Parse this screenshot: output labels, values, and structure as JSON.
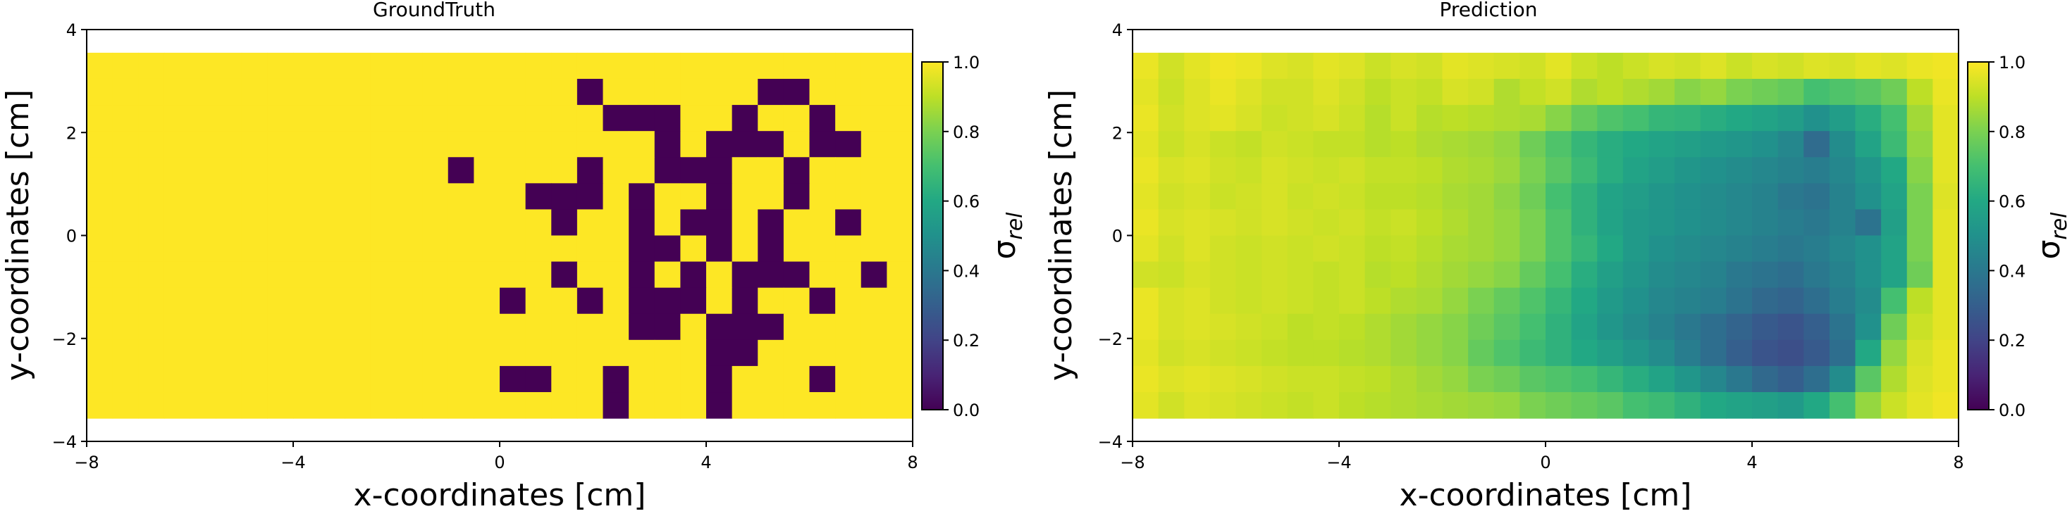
{
  "chart_data": [
    {
      "type": "heatmap",
      "title": "GroundTruth",
      "xlabel": "x-coordinates [cm]",
      "ylabel": "y-coordinates [cm]",
      "xlim": [
        -8,
        8
      ],
      "ylim": [
        -4,
        4
      ],
      "xticks": [
        -8,
        -4,
        0,
        4,
        8
      ],
      "yticks": [
        -4,
        -2,
        0,
        2,
        4
      ],
      "xtick_labels": [
        "−8",
        "−4",
        "0",
        "4",
        "8"
      ],
      "ytick_labels": [
        "−4",
        "−2",
        "0",
        "2",
        "4"
      ],
      "extent": [
        -8,
        8,
        -3.55,
        3.55
      ],
      "grid_size": [
        32,
        14
      ],
      "colorscale": "viridis",
      "colorbar": {
        "label": "σ",
        "label_sub": "rel",
        "range": [
          0,
          1
        ],
        "ticks": [
          "0.0",
          "0.2",
          "0.4",
          "0.6",
          "0.8",
          "1.0"
        ]
      },
      "grid": false,
      "default_value": 1.0,
      "low_cells": [
        [
          19,
          1
        ],
        [
          26,
          1
        ],
        [
          27,
          1
        ],
        [
          20,
          2
        ],
        [
          21,
          2
        ],
        [
          22,
          2
        ],
        [
          25,
          2
        ],
        [
          28,
          2
        ],
        [
          22,
          3
        ],
        [
          24,
          3
        ],
        [
          25,
          3
        ],
        [
          26,
          3
        ],
        [
          28,
          3
        ],
        [
          29,
          3
        ],
        [
          14,
          4
        ],
        [
          19,
          4
        ],
        [
          22,
          4
        ],
        [
          23,
          4
        ],
        [
          24,
          4
        ],
        [
          27,
          4
        ],
        [
          17,
          5
        ],
        [
          18,
          5
        ],
        [
          19,
          5
        ],
        [
          21,
          5
        ],
        [
          24,
          5
        ],
        [
          27,
          5
        ],
        [
          18,
          6
        ],
        [
          21,
          6
        ],
        [
          23,
          6
        ],
        [
          24,
          6
        ],
        [
          26,
          6
        ],
        [
          29,
          6
        ],
        [
          21,
          7
        ],
        [
          22,
          7
        ],
        [
          24,
          7
        ],
        [
          26,
          7
        ],
        [
          18,
          8
        ],
        [
          21,
          8
        ],
        [
          23,
          8
        ],
        [
          25,
          8
        ],
        [
          26,
          8
        ],
        [
          27,
          8
        ],
        [
          30,
          8
        ],
        [
          16,
          9
        ],
        [
          19,
          9
        ],
        [
          21,
          9
        ],
        [
          22,
          9
        ],
        [
          23,
          9
        ],
        [
          25,
          9
        ],
        [
          28,
          9
        ],
        [
          21,
          10
        ],
        [
          22,
          10
        ],
        [
          24,
          10
        ],
        [
          25,
          10
        ],
        [
          26,
          10
        ],
        [
          24,
          11
        ],
        [
          25,
          11
        ],
        [
          16,
          12
        ],
        [
          17,
          12
        ],
        [
          20,
          12
        ],
        [
          24,
          12
        ],
        [
          28,
          12
        ],
        [
          20,
          13
        ],
        [
          24,
          13
        ]
      ]
    },
    {
      "type": "heatmap",
      "title": "Prediction",
      "xlabel": "x-coordinates [cm]",
      "ylabel": "y-coordinates [cm]",
      "xlim": [
        -8,
        8
      ],
      "ylim": [
        -4,
        4
      ],
      "xticks": [
        -8,
        -4,
        0,
        4,
        8
      ],
      "yticks": [
        -4,
        -2,
        0,
        2,
        4
      ],
      "xtick_labels": [
        "−8",
        "−4",
        "0",
        "4",
        "8"
      ],
      "ytick_labels": [
        "−4",
        "−2",
        "0",
        "2",
        "4"
      ],
      "extent": [
        -8,
        8,
        -3.55,
        3.55
      ],
      "grid_size": [
        32,
        14
      ],
      "colorscale": "viridis",
      "colorbar": {
        "label": "σ",
        "label_sub": "rel",
        "range": [
          0,
          1
        ],
        "ticks": [
          "0.0",
          "0.2",
          "0.4",
          "0.6",
          "0.8",
          "1.0"
        ]
      },
      "grid": false,
      "values": [
        [
          0.97,
          0.93,
          0.96,
          0.98,
          0.97,
          0.95,
          0.94,
          0.96,
          0.95,
          0.92,
          0.94,
          0.93,
          0.96,
          0.95,
          0.94,
          0.93,
          0.96,
          0.92,
          0.9,
          0.92,
          0.94,
          0.93,
          0.95,
          0.92,
          0.94,
          0.93,
          0.95,
          0.94,
          0.96,
          0.95,
          0.97,
          0.98
        ],
        [
          0.96,
          0.92,
          0.95,
          0.97,
          0.95,
          0.93,
          0.93,
          0.95,
          0.93,
          0.9,
          0.92,
          0.91,
          0.94,
          0.93,
          0.88,
          0.91,
          0.93,
          0.88,
          0.9,
          0.88,
          0.86,
          0.82,
          0.84,
          0.8,
          0.78,
          0.76,
          0.7,
          0.72,
          0.74,
          0.78,
          0.9,
          0.97
        ],
        [
          0.97,
          0.93,
          0.95,
          0.96,
          0.94,
          0.92,
          0.93,
          0.94,
          0.92,
          0.89,
          0.92,
          0.89,
          0.9,
          0.89,
          0.88,
          0.87,
          0.82,
          0.76,
          0.72,
          0.7,
          0.66,
          0.65,
          0.62,
          0.6,
          0.58,
          0.55,
          0.5,
          0.55,
          0.62,
          0.7,
          0.86,
          0.96
        ],
        [
          0.96,
          0.92,
          0.94,
          0.92,
          0.91,
          0.93,
          0.92,
          0.91,
          0.91,
          0.89,
          0.9,
          0.88,
          0.87,
          0.86,
          0.84,
          0.78,
          0.72,
          0.66,
          0.62,
          0.6,
          0.58,
          0.56,
          0.54,
          0.52,
          0.5,
          0.46,
          0.35,
          0.48,
          0.58,
          0.68,
          0.84,
          0.96
        ],
        [
          0.97,
          0.94,
          0.95,
          0.93,
          0.92,
          0.94,
          0.93,
          0.92,
          0.93,
          0.91,
          0.91,
          0.9,
          0.88,
          0.87,
          0.85,
          0.8,
          0.74,
          0.68,
          0.62,
          0.58,
          0.55,
          0.52,
          0.5,
          0.48,
          0.46,
          0.44,
          0.42,
          0.46,
          0.52,
          0.6,
          0.82,
          0.96
        ],
        [
          0.96,
          0.93,
          0.94,
          0.92,
          0.93,
          0.94,
          0.92,
          0.93,
          0.92,
          0.9,
          0.9,
          0.89,
          0.87,
          0.86,
          0.83,
          0.78,
          0.7,
          0.64,
          0.58,
          0.55,
          0.52,
          0.5,
          0.48,
          0.46,
          0.44,
          0.4,
          0.38,
          0.44,
          0.5,
          0.58,
          0.8,
          0.95
        ],
        [
          0.97,
          0.94,
          0.95,
          0.94,
          0.93,
          0.94,
          0.93,
          0.92,
          0.93,
          0.91,
          0.92,
          0.9,
          0.88,
          0.86,
          0.84,
          0.8,
          0.72,
          0.64,
          0.58,
          0.54,
          0.52,
          0.5,
          0.48,
          0.46,
          0.44,
          0.42,
          0.4,
          0.44,
          0.38,
          0.56,
          0.8,
          0.96
        ],
        [
          0.96,
          0.93,
          0.95,
          0.93,
          0.92,
          0.93,
          0.92,
          0.93,
          0.92,
          0.9,
          0.91,
          0.89,
          0.87,
          0.86,
          0.84,
          0.8,
          0.72,
          0.66,
          0.6,
          0.54,
          0.5,
          0.48,
          0.46,
          0.44,
          0.42,
          0.4,
          0.42,
          0.46,
          0.5,
          0.58,
          0.8,
          0.96
        ],
        [
          0.93,
          0.92,
          0.94,
          0.93,
          0.92,
          0.93,
          0.92,
          0.91,
          0.92,
          0.89,
          0.9,
          0.88,
          0.86,
          0.84,
          0.82,
          0.76,
          0.7,
          0.62,
          0.56,
          0.52,
          0.48,
          0.46,
          0.44,
          0.4,
          0.38,
          0.36,
          0.4,
          0.44,
          0.5,
          0.58,
          0.78,
          0.96
        ],
        [
          0.97,
          0.94,
          0.95,
          0.93,
          0.92,
          0.93,
          0.92,
          0.91,
          0.92,
          0.9,
          0.88,
          0.87,
          0.84,
          0.8,
          0.76,
          0.72,
          0.66,
          0.6,
          0.54,
          0.5,
          0.46,
          0.44,
          0.42,
          0.38,
          0.34,
          0.32,
          0.36,
          0.42,
          0.48,
          0.7,
          0.9,
          0.96
        ],
        [
          0.97,
          0.94,
          0.95,
          0.94,
          0.93,
          0.92,
          0.9,
          0.91,
          0.9,
          0.88,
          0.86,
          0.84,
          0.82,
          0.78,
          0.74,
          0.7,
          0.64,
          0.58,
          0.52,
          0.48,
          0.44,
          0.4,
          0.36,
          0.32,
          0.28,
          0.26,
          0.3,
          0.38,
          0.5,
          0.78,
          0.92,
          0.96
        ],
        [
          0.96,
          0.93,
          0.94,
          0.93,
          0.92,
          0.91,
          0.9,
          0.9,
          0.89,
          0.88,
          0.86,
          0.84,
          0.82,
          0.76,
          0.72,
          0.68,
          0.64,
          0.6,
          0.56,
          0.52,
          0.48,
          0.42,
          0.36,
          0.3,
          0.26,
          0.24,
          0.28,
          0.36,
          0.6,
          0.84,
          0.94,
          0.97
        ],
        [
          0.97,
          0.95,
          0.96,
          0.95,
          0.94,
          0.93,
          0.92,
          0.92,
          0.91,
          0.9,
          0.88,
          0.86,
          0.84,
          0.8,
          0.78,
          0.74,
          0.72,
          0.7,
          0.66,
          0.62,
          0.58,
          0.52,
          0.46,
          0.4,
          0.34,
          0.3,
          0.36,
          0.48,
          0.74,
          0.88,
          0.95,
          0.97
        ],
        [
          0.96,
          0.93,
          0.95,
          0.94,
          0.93,
          0.92,
          0.91,
          0.92,
          0.9,
          0.89,
          0.88,
          0.87,
          0.86,
          0.85,
          0.84,
          0.8,
          0.78,
          0.76,
          0.74,
          0.7,
          0.68,
          0.64,
          0.6,
          0.58,
          0.56,
          0.54,
          0.6,
          0.7,
          0.84,
          0.92,
          0.96,
          0.98
        ]
      ]
    }
  ]
}
